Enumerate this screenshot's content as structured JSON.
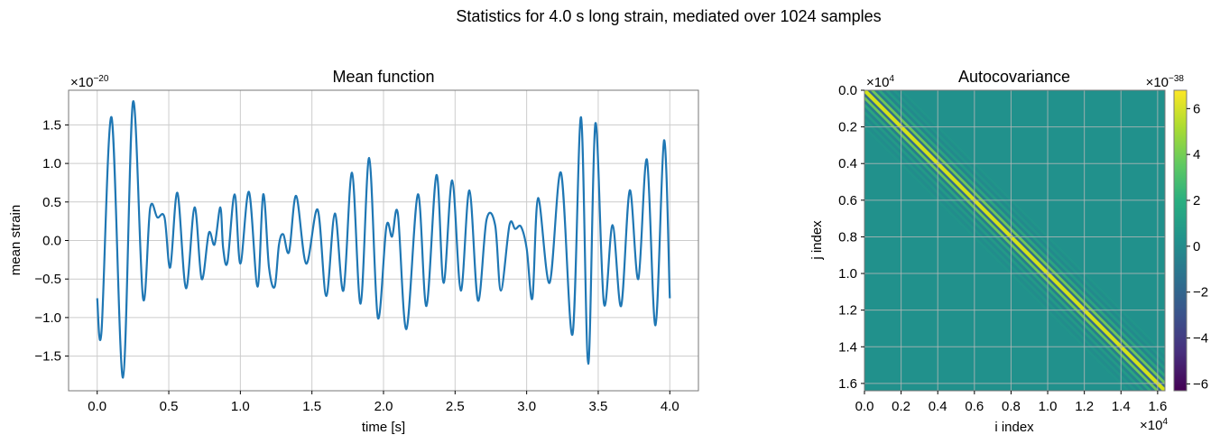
{
  "figure": {
    "suptitle": "Statistics for 4.0 s long strain, mediated over 1024 samples"
  },
  "chart_data": [
    {
      "type": "line",
      "title": "Mean function",
      "xlabel": "time [s]",
      "ylabel": "mean strain",
      "offset_text": "×10",
      "offset_exp": "−20",
      "xlim": [
        -0.2,
        4.2
      ],
      "ylim": [
        -1.95,
        1.95
      ],
      "xticks": [
        0.0,
        0.5,
        1.0,
        1.5,
        2.0,
        2.5,
        3.0,
        3.5,
        4.0
      ],
      "xtick_labels": [
        "0.0",
        "0.5",
        "1.0",
        "1.5",
        "2.0",
        "2.5",
        "3.0",
        "3.5",
        "4.0"
      ],
      "yticks": [
        -1.5,
        -1.0,
        -0.5,
        0.0,
        0.5,
        1.0,
        1.5
      ],
      "ytick_labels": [
        "−1.5",
        "−1.0",
        "−0.5",
        "0.0",
        "0.5",
        "1.0",
        "1.5"
      ],
      "grid": true,
      "series_color": "#1f77b4",
      "x": [
        0.0,
        0.03,
        0.1,
        0.18,
        0.25,
        0.32,
        0.37,
        0.42,
        0.47,
        0.51,
        0.56,
        0.62,
        0.68,
        0.73,
        0.78,
        0.82,
        0.86,
        0.88,
        0.91,
        0.96,
        1.0,
        1.06,
        1.12,
        1.16,
        1.2,
        1.24,
        1.27,
        1.3,
        1.34,
        1.39,
        1.46,
        1.54,
        1.6,
        1.66,
        1.72,
        1.78,
        1.84,
        1.9,
        1.96,
        2.02,
        2.06,
        2.1,
        2.16,
        2.24,
        2.3,
        2.37,
        2.42,
        2.48,
        2.54,
        2.6,
        2.66,
        2.72,
        2.78,
        2.82,
        2.88,
        2.92,
        2.96,
        3.0,
        3.04,
        3.08,
        3.16,
        3.24,
        3.32,
        3.38,
        3.43,
        3.48,
        3.54,
        3.6,
        3.66,
        3.72,
        3.78,
        3.84,
        3.9,
        3.96,
        4.0
      ],
      "y": [
        -0.75,
        -1.18,
        1.6,
        -1.78,
        1.8,
        -0.75,
        0.42,
        0.3,
        0.3,
        -0.35,
        0.62,
        -0.62,
        0.43,
        -0.5,
        0.1,
        -0.05,
        0.43,
        -0.1,
        -0.28,
        0.6,
        -0.3,
        0.63,
        -0.6,
        0.6,
        -0.35,
        -0.6,
        -0.05,
        0.08,
        -0.15,
        0.58,
        -0.3,
        0.4,
        -0.72,
        0.35,
        -0.65,
        0.88,
        -0.82,
        1.07,
        -1.0,
        0.18,
        0.05,
        0.35,
        -1.15,
        0.6,
        -0.85,
        0.85,
        -0.55,
        0.78,
        -0.65,
        0.65,
        -0.78,
        0.27,
        0.2,
        -0.65,
        0.2,
        0.15,
        0.18,
        -0.1,
        -0.75,
        0.55,
        -0.55,
        0.88,
        -1.22,
        1.6,
        -1.6,
        1.52,
        -0.82,
        0.2,
        -0.85,
        0.65,
        -0.5,
        1.05,
        -1.1,
        1.3,
        -0.75
      ]
    },
    {
      "type": "heatmap",
      "title": "Autocovariance",
      "xlabel": "i index",
      "ylabel": "j index",
      "x_offset_text": "×10",
      "x_offset_exp": "4",
      "y_offset_text": "×10",
      "y_offset_exp": "4",
      "xlim": [
        0.0,
        1.64
      ],
      "ylim": [
        1.64,
        0.0
      ],
      "xticks": [
        0.0,
        0.2,
        0.4,
        0.6,
        0.8,
        1.0,
        1.2,
        1.4,
        1.6
      ],
      "xtick_labels": [
        "0.0",
        "0.2",
        "0.4",
        "0.6",
        "0.8",
        "1.0",
        "1.2",
        "1.4",
        "1.6"
      ],
      "yticks": [
        0.0,
        0.2,
        0.4,
        0.6,
        0.8,
        1.0,
        1.2,
        1.4,
        1.6
      ],
      "ytick_labels": [
        "0.0",
        "0.2",
        "0.4",
        "0.6",
        "0.8",
        "1.0",
        "1.2",
        "1.4",
        "1.6"
      ],
      "colormap": "viridis",
      "grid": true,
      "colorbar": {
        "offset_text": "×10",
        "offset_exp": "−38",
        "range": [
          -6.3,
          6.8
        ],
        "ticks": [
          -6,
          -4,
          -2,
          0,
          2,
          4,
          6
        ],
        "tick_labels": [
          "−6",
          "−4",
          "−2",
          "0",
          "2",
          "4",
          "6"
        ]
      },
      "pattern": "banded diagonal (Toeplitz autocovariance)",
      "diagonal_peak": 6.5,
      "background_value": 0.0,
      "band_period": 0.04
    }
  ]
}
